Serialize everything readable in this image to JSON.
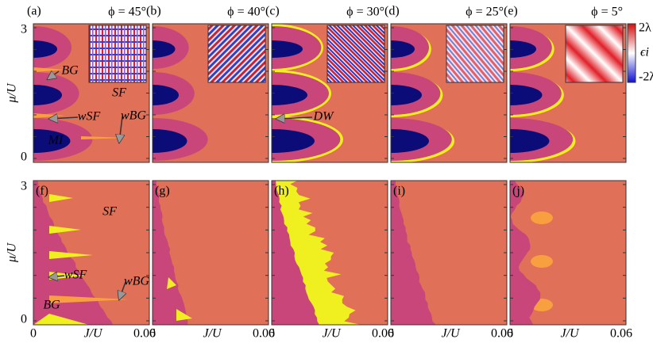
{
  "panels": [
    {
      "label": "(a)",
      "phi": "ϕ = 45°",
      "annotations": [
        "BG",
        "wSF",
        "wBG",
        "SF",
        "MI"
      ]
    },
    {
      "label": "(b)",
      "phi": "ϕ = 40°"
    },
    {
      "label": "(c)",
      "phi": "ϕ = 30°",
      "annotations": [
        "DW"
      ]
    },
    {
      "label": "(d)",
      "phi": "ϕ = 25°"
    },
    {
      "label": "(e)",
      "phi": "ϕ = 5°"
    },
    {
      "label": "(f)",
      "annotations": [
        "SF",
        "wSF",
        "wBG",
        "BG"
      ]
    },
    {
      "label": "(g)"
    },
    {
      "label": "(h)"
    },
    {
      "label": "(i)"
    },
    {
      "label": "(j)"
    }
  ],
  "y_axis": {
    "label": "μ/U",
    "ticks": [
      "3",
      "0"
    ]
  },
  "x_axis": {
    "label": "J/U",
    "ticks": [
      "0",
      "0.06"
    ]
  },
  "colorbar": {
    "max": "2λ",
    "label": "ϵi",
    "min": "-2λ"
  }
}
